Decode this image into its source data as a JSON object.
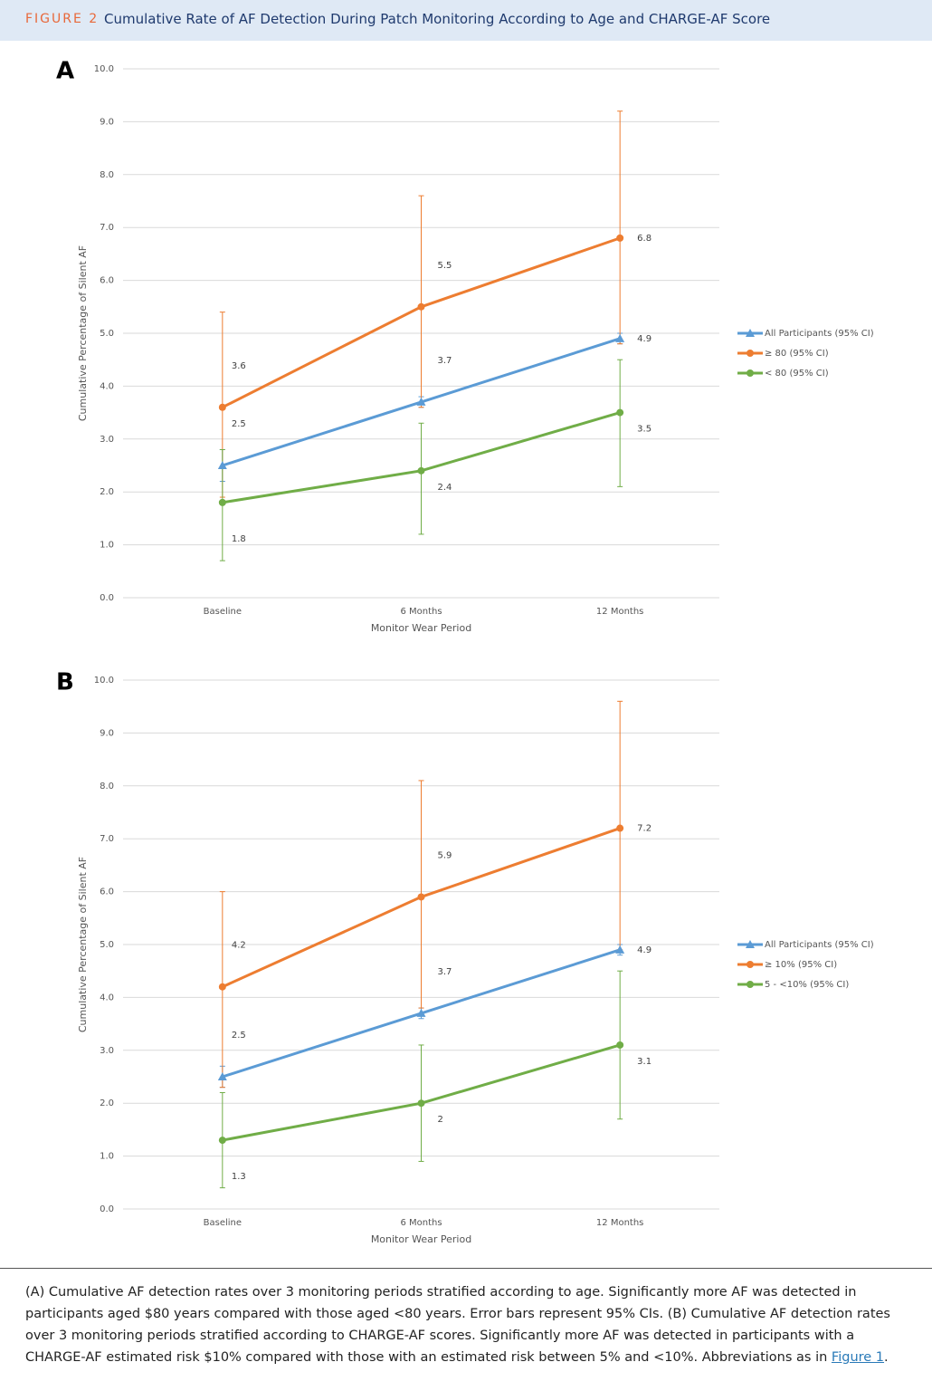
{
  "figure": {
    "label": "FIGURE 2",
    "title": "Cumulative Rate of AF Detection During Patch Monitoring According to Age and CHARGE-AF Score",
    "caption": "(A) Cumulative AF detection rates over 3 monitoring periods stratified according to age. Significantly more AF was detected in participants aged $80 years compared with those aged <80 years. Error bars represent 95% CIs. (B) Cumulative AF detection rates over 3 monitoring periods stratified according to CHARGE-AF scores. Significantly more AF was detected in participants with a CHARGE-AF estimated risk $10% compared with those with an estimated risk between 5% and <10%. Abbreviations as in ",
    "caption_link": "Figure 1",
    "caption_end": "."
  },
  "chart_data": [
    {
      "type": "line",
      "panel": "A",
      "x_label": "Monitor Wear Period",
      "y_label": "Cumulative Percentage of Silent AF",
      "categories": [
        "Baseline",
        "6 Months",
        "12 Months"
      ],
      "ylim": [
        0,
        10
      ],
      "yticks": [
        {
          "value": 0,
          "label": "0.0"
        },
        {
          "value": 1,
          "label": "1.0"
        },
        {
          "value": 2,
          "label": "2.0"
        },
        {
          "value": 3,
          "label": "3.0"
        },
        {
          "value": 4,
          "label": "4.0"
        },
        {
          "value": 5,
          "label": "5.0"
        },
        {
          "value": 6,
          "label": "6.0"
        },
        {
          "value": 7,
          "label": "7.0"
        },
        {
          "value": 8,
          "label": "8.0"
        },
        {
          "value": 9,
          "label": "9.0"
        },
        {
          "value": 10,
          "label": "10.0"
        }
      ],
      "grid": true,
      "legend": "right",
      "series": [
        {
          "name": "All Participants (95% CI)",
          "color": "#5b9bd5",
          "marker": "triangle",
          "values": [
            2.5,
            3.7,
            4.9
          ],
          "ci_lower": [
            2.2,
            3.6,
            4.8
          ],
          "ci_upper": [
            2.8,
            3.8,
            5.0
          ]
        },
        {
          "name": "≥ 80 (95% CI)",
          "color": "#ed7d31",
          "marker": "circle",
          "values": [
            3.6,
            5.5,
            6.8
          ],
          "ci_lower": [
            1.9,
            3.6,
            4.8
          ],
          "ci_upper": [
            5.4,
            7.6,
            9.2
          ]
        },
        {
          "name": "< 80 (95% CI)",
          "color": "#70ad47",
          "marker": "circle",
          "values": [
            1.8,
            2.4,
            3.5
          ],
          "ci_lower": [
            0.7,
            1.2,
            2.1
          ],
          "ci_upper": [
            2.8,
            3.3,
            4.5
          ]
        }
      ]
    },
    {
      "type": "line",
      "panel": "B",
      "x_label": "Monitor Wear Period",
      "y_label": "Cumulative Percentage of Silent AF",
      "categories": [
        "Baseline",
        "6 Months",
        "12 Months"
      ],
      "ylim": [
        0,
        10
      ],
      "yticks": [
        {
          "value": 0,
          "label": "0.0"
        },
        {
          "value": 1,
          "label": "1.0"
        },
        {
          "value": 2,
          "label": "2.0"
        },
        {
          "value": 3,
          "label": "3.0"
        },
        {
          "value": 4,
          "label": "4.0"
        },
        {
          "value": 5,
          "label": "5.0"
        },
        {
          "value": 6,
          "label": "6.0"
        },
        {
          "value": 7,
          "label": "7.0"
        },
        {
          "value": 8,
          "label": "8.0"
        },
        {
          "value": 9,
          "label": "9.0"
        },
        {
          "value": 10,
          "label": "10.0"
        }
      ],
      "grid": true,
      "legend": "right",
      "series": [
        {
          "name": "All Participants (95% CI)",
          "color": "#5b9bd5",
          "marker": "triangle",
          "values": [
            2.5,
            3.7,
            4.9
          ],
          "ci_lower": [
            2.3,
            3.6,
            4.8
          ],
          "ci_upper": [
            2.7,
            3.8,
            5.0
          ]
        },
        {
          "name": "≥ 10% (95% CI)",
          "color": "#ed7d31",
          "marker": "circle",
          "values": [
            4.2,
            5.9,
            7.2
          ],
          "ci_lower": [
            2.3,
            3.8,
            4.9
          ],
          "ci_upper": [
            6.0,
            8.1,
            9.6
          ]
        },
        {
          "name": "5 - <10% (95% CI)",
          "color": "#70ad47",
          "marker": "circle",
          "values": [
            1.3,
            2.0,
            3.1
          ],
          "ci_lower": [
            0.4,
            0.9,
            1.7
          ],
          "ci_upper": [
            2.2,
            3.1,
            4.5
          ]
        }
      ]
    }
  ]
}
